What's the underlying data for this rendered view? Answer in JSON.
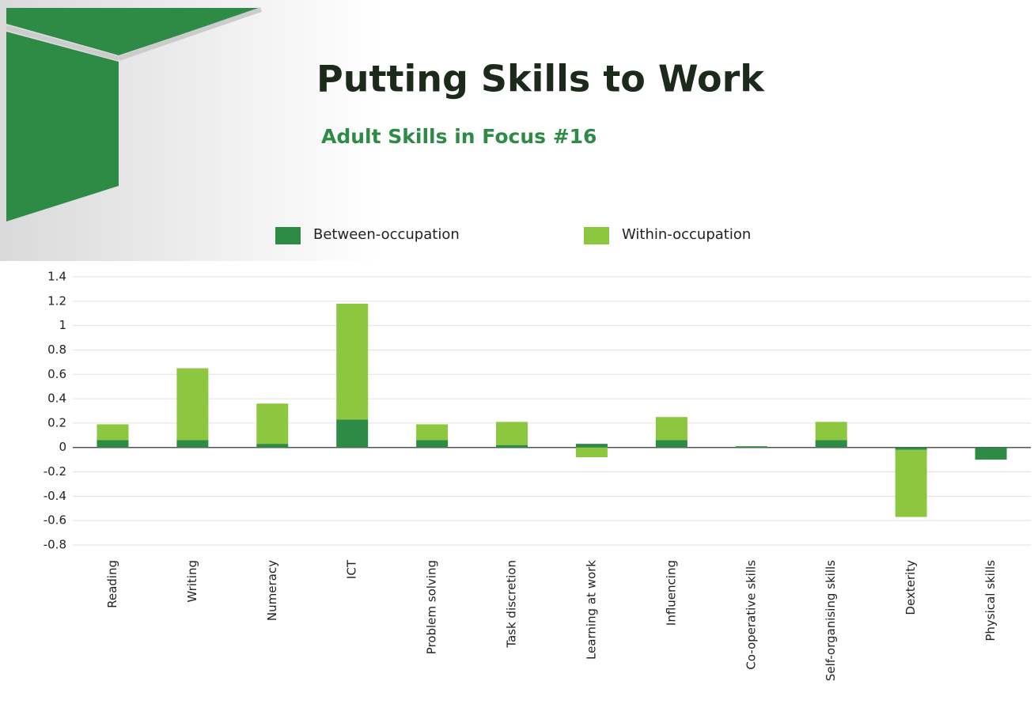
{
  "chart_data": {
    "type": "bar",
    "stacked": true,
    "title": "Putting Skills to Work",
    "subtitle": "Adult Skills in Focus #16",
    "categories": [
      "Reading",
      "Writing",
      "Numeracy",
      "ICT",
      "Problem solving",
      "Task discretion",
      "Learning at work",
      "Influencing",
      "Co-operative skills",
      "Self-organising skills",
      "Dexterity",
      "Physical skills"
    ],
    "series": [
      {
        "name": "Between-occupation",
        "color": "#2e8b46",
        "values": [
          0.06,
          0.06,
          0.03,
          0.23,
          0.06,
          0.02,
          0.03,
          0.06,
          0.01,
          0.06,
          -0.02,
          -0.1
        ]
      },
      {
        "name": "Within-occupation",
        "color": "#8dc63f",
        "values": [
          0.13,
          0.59,
          0.33,
          0.95,
          0.13,
          0.19,
          -0.08,
          0.19,
          0,
          0.15,
          -0.55,
          0
        ]
      }
    ],
    "ylim": [
      -0.8,
      1.4
    ],
    "yticks": [
      1.4,
      1.2,
      1,
      0.8,
      0.6,
      0.4,
      0.2,
      0,
      -0.2,
      -0.4,
      -0.6,
      -0.8
    ],
    "grid": true,
    "legend": "top"
  }
}
